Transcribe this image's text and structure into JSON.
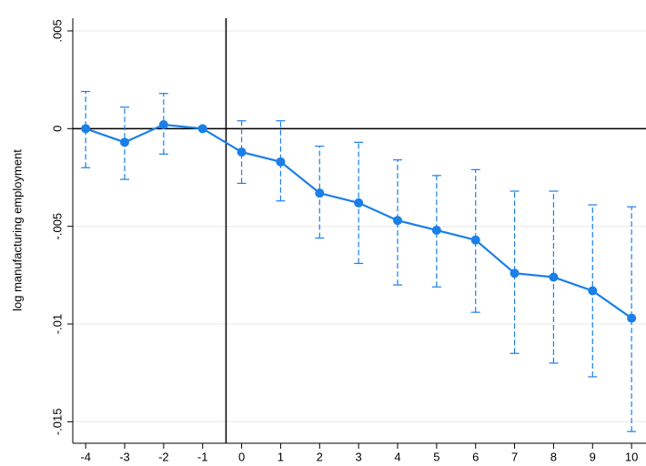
{
  "chart_data": {
    "type": "line",
    "y_label": "log manufacturing employment",
    "x": [
      -4,
      -3,
      -2,
      -1,
      0,
      1,
      2,
      3,
      4,
      5,
      6,
      7,
      8,
      9,
      10
    ],
    "series": [
      {
        "color": "#1a7fe8",
        "values": [
          0.0,
          -0.0007,
          0.0002,
          0.0,
          -0.0012,
          -0.0017,
          -0.0033,
          -0.0038,
          -0.0047,
          -0.0052,
          -0.0057,
          -0.0074,
          -0.0076,
          -0.0083,
          -0.0097
        ],
        "ci_lower": [
          -0.002,
          -0.0026,
          -0.0013,
          null,
          -0.0028,
          -0.0037,
          -0.0056,
          -0.0069,
          -0.008,
          -0.0081,
          -0.0094,
          -0.0115,
          -0.012,
          -0.0127,
          -0.0155
        ],
        "ci_upper": [
          0.0019,
          0.0011,
          0.0018,
          null,
          0.0004,
          0.0004,
          -0.0009,
          -0.0007,
          -0.0016,
          -0.0024,
          -0.0021,
          -0.0032,
          -0.0032,
          -0.0039,
          -0.004
        ]
      }
    ],
    "xlim": [
      -4.33,
      10.37
    ],
    "ylim": [
      -0.0161,
      0.00565
    ],
    "xticks": [
      -4,
      -3,
      -2,
      -1,
      0,
      1,
      2,
      3,
      4,
      5,
      6,
      7,
      8,
      9,
      10
    ],
    "yticks": [
      {
        "value": 0.005,
        "label": ".005"
      },
      0,
      {
        "value": -0.005,
        "label": "-.005"
      },
      {
        "value": -0.01,
        "label": "-.01"
      },
      {
        "value": -0.015,
        "label": "-.015"
      }
    ],
    "grid": true,
    "vline": -0.4,
    "hline": 0
  }
}
